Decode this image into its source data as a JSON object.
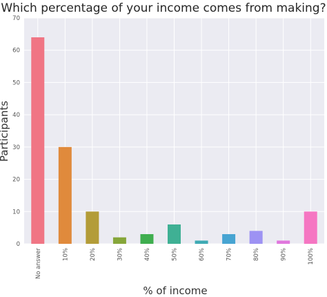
{
  "chart_data": {
    "type": "bar",
    "title": "Which percentage of your income comes from making?",
    "xlabel": "% of income",
    "ylabel": "Participants",
    "categories": [
      "No answer",
      "10%",
      "20%",
      "30%",
      "40%",
      "50%",
      "60%",
      "70%",
      "80%",
      "90%",
      "100%"
    ],
    "values": [
      64,
      30,
      10,
      2,
      3,
      6,
      1,
      3,
      4,
      1,
      10
    ],
    "ylim": [
      0,
      70
    ],
    "yticks": [
      0,
      10,
      20,
      30,
      40,
      50,
      60,
      70
    ],
    "grid": true,
    "legend": "none",
    "colors": [
      "#f07584",
      "#e08a3c",
      "#b39c38",
      "#86a63a",
      "#3fae4f",
      "#3fb094",
      "#3faab4",
      "#47a4d2",
      "#9d92f3",
      "#e077dd",
      "#f576c2"
    ],
    "background": "#ebebf2",
    "grid_color": "#ffffff"
  }
}
